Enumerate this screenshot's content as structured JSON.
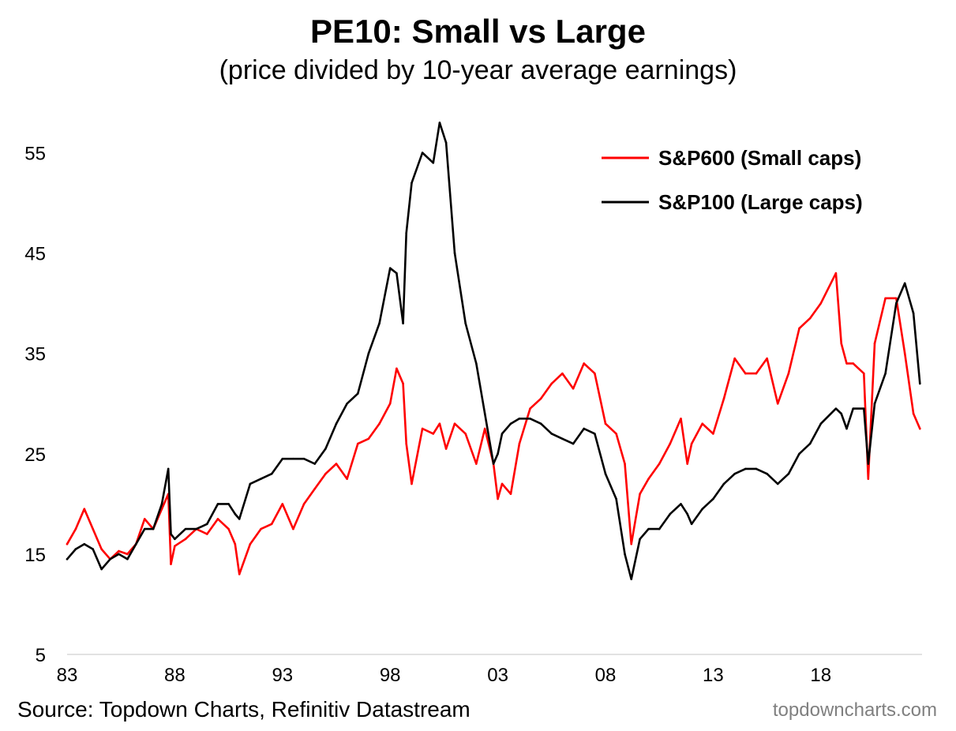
{
  "chart_data": {
    "type": "line",
    "title": "PE10: Small vs Large",
    "subtitle": "(price divided by 10-year average earnings)",
    "xlabel": "",
    "ylabel": "",
    "xlim": [
      1983,
      2022.7
    ],
    "ylim": [
      5,
      60
    ],
    "x_ticks": [
      1983,
      1988,
      1993,
      1998,
      2003,
      2008,
      2013,
      2018
    ],
    "x_tick_labels": [
      "83",
      "88",
      "93",
      "98",
      "03",
      "08",
      "13",
      "18"
    ],
    "y_ticks": [
      5,
      15,
      25,
      35,
      45,
      55
    ],
    "y_tick_labels": [
      "5",
      "15",
      "25",
      "35",
      "45",
      "55"
    ],
    "grid": false,
    "legend_position": "top-right",
    "series": [
      {
        "name": "S&P600 (Small caps)",
        "color": "#ff0000",
        "x": [
          1983.0,
          1983.4,
          1983.8,
          1984.2,
          1984.6,
          1985.0,
          1985.4,
          1985.8,
          1986.2,
          1986.6,
          1987.0,
          1987.4,
          1987.7,
          1987.82,
          1988.0,
          1988.5,
          1989.0,
          1989.5,
          1990.0,
          1990.5,
          1990.8,
          1991.0,
          1991.5,
          1992.0,
          1992.5,
          1993.0,
          1993.5,
          1994.0,
          1994.5,
          1995.0,
          1995.5,
          1996.0,
          1996.5,
          1997.0,
          1997.5,
          1998.0,
          1998.3,
          1998.6,
          1998.75,
          1999.0,
          1999.5,
          2000.0,
          2000.3,
          2000.6,
          2001.0,
          2001.5,
          2002.0,
          2002.4,
          2002.8,
          2003.0,
          2003.2,
          2003.6,
          2004.0,
          2004.5,
          2005.0,
          2005.5,
          2006.0,
          2006.5,
          2007.0,
          2007.5,
          2008.0,
          2008.5,
          2008.9,
          2009.2,
          2009.6,
          2010.0,
          2010.5,
          2011.0,
          2011.5,
          2011.8,
          2012.0,
          2012.5,
          2013.0,
          2013.5,
          2014.0,
          2014.5,
          2015.0,
          2015.5,
          2016.0,
          2016.5,
          2017.0,
          2017.5,
          2018.0,
          2018.7,
          2018.95,
          2019.2,
          2019.5,
          2020.0,
          2020.2,
          2020.5,
          2021.0,
          2021.5,
          2021.9,
          2022.3,
          2022.6
        ],
        "values": [
          16,
          17.5,
          19.5,
          17.5,
          15.5,
          14.5,
          15.3,
          15,
          16,
          18.5,
          17.5,
          19.5,
          21,
          14,
          15.8,
          16.5,
          17.5,
          17,
          18.5,
          17.5,
          16,
          13,
          16,
          17.5,
          18,
          20,
          17.5,
          20,
          21.5,
          23,
          24,
          22.5,
          26,
          26.5,
          28,
          30,
          33.5,
          32,
          26,
          22,
          27.5,
          27,
          28,
          25.5,
          28,
          27,
          24,
          27.5,
          24,
          20.5,
          22,
          21,
          26,
          29.5,
          30.5,
          32,
          33,
          31.5,
          34,
          33,
          28,
          27,
          24,
          16,
          21,
          22.5,
          24,
          26,
          28.5,
          24,
          26,
          28,
          27,
          30.5,
          34.5,
          33,
          33,
          34.5,
          30,
          33,
          37.5,
          38.5,
          40,
          43,
          36,
          34,
          34,
          33,
          22.5,
          36,
          40.5,
          40.5,
          35,
          29,
          27.5
        ]
      },
      {
        "name": "S&P100 (Large caps)",
        "color": "#000000",
        "x": [
          1983.0,
          1983.4,
          1983.8,
          1984.2,
          1984.6,
          1985.0,
          1985.4,
          1985.8,
          1986.2,
          1986.6,
          1987.0,
          1987.4,
          1987.7,
          1987.82,
          1988.0,
          1988.5,
          1989.0,
          1989.5,
          1990.0,
          1990.5,
          1990.8,
          1991.0,
          1991.5,
          1992.0,
          1992.5,
          1993.0,
          1993.5,
          1994.0,
          1994.5,
          1995.0,
          1995.5,
          1996.0,
          1996.5,
          1997.0,
          1997.5,
          1998.0,
          1998.3,
          1998.6,
          1998.75,
          1999.0,
          1999.5,
          2000.0,
          2000.3,
          2000.6,
          2001.0,
          2001.5,
          2002.0,
          2002.4,
          2002.8,
          2003.0,
          2003.2,
          2003.6,
          2004.0,
          2004.5,
          2005.0,
          2005.5,
          2006.0,
          2006.5,
          2007.0,
          2007.5,
          2008.0,
          2008.5,
          2008.9,
          2009.2,
          2009.6,
          2010.0,
          2010.5,
          2011.0,
          2011.5,
          2011.8,
          2012.0,
          2012.5,
          2013.0,
          2013.5,
          2014.0,
          2014.5,
          2015.0,
          2015.5,
          2016.0,
          2016.5,
          2017.0,
          2017.5,
          2018.0,
          2018.7,
          2018.95,
          2019.2,
          2019.5,
          2020.0,
          2020.2,
          2020.5,
          2021.0,
          2021.5,
          2021.9,
          2022.3,
          2022.6
        ],
        "values": [
          14.5,
          15.5,
          16,
          15.5,
          13.5,
          14.5,
          15,
          14.5,
          16,
          17.5,
          17.5,
          20,
          23.5,
          17,
          16.5,
          17.5,
          17.5,
          18,
          20,
          20,
          19,
          18.5,
          22,
          22.5,
          23,
          24.5,
          24.5,
          24.5,
          24,
          25.5,
          28,
          30,
          31,
          35,
          38,
          43.5,
          43,
          38,
          47,
          52,
          55,
          54,
          58,
          56,
          45,
          38,
          34,
          29,
          24,
          25,
          27,
          28,
          28.5,
          28.5,
          28,
          27,
          26.5,
          26,
          27.5,
          27,
          23,
          20.5,
          15,
          12.5,
          16.5,
          17.5,
          17.5,
          19,
          20,
          19,
          18,
          19.5,
          20.5,
          22,
          23,
          23.5,
          23.5,
          23,
          22,
          23,
          25,
          26,
          28,
          29.5,
          29,
          27.5,
          29.5,
          29.5,
          24,
          30,
          33,
          40,
          42,
          39,
          32
        ]
      }
    ]
  },
  "source": "Source: Topdown Charts, Refinitiv Datastream",
  "watermark": "topdowncharts.com"
}
